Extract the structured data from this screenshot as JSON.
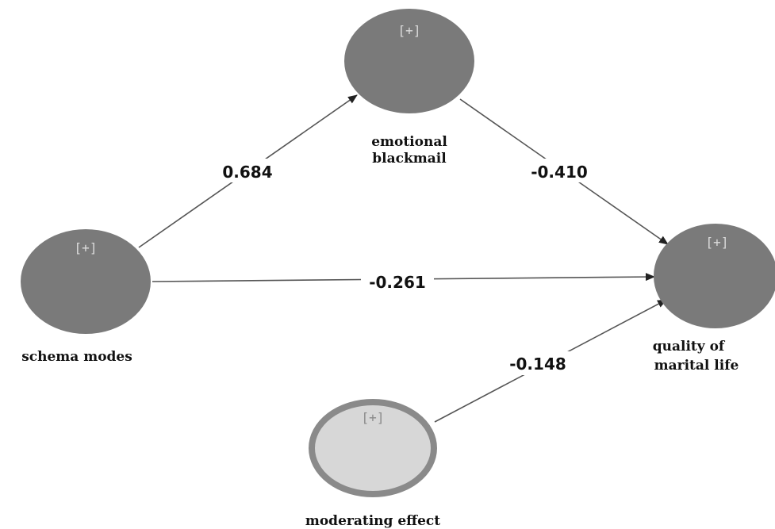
{
  "nodes": {
    "schema_modes": {
      "label": "schema modes",
      "expand": "[+]"
    },
    "emotional_blackmail": {
      "label_line1": "emotional",
      "label_line2": "blackmail",
      "expand": "[+]"
    },
    "quality_of_marital_life": {
      "label_line1": "quality of",
      "label_line2": "marital life",
      "expand": "[+]"
    },
    "moderating_effect": {
      "label": "moderating effect",
      "expand": "[+]"
    }
  },
  "paths": {
    "schema_to_emotional": "0.684",
    "emotional_to_quality": "-0.410",
    "schema_to_quality": "-0.261",
    "moderating_to_quality": "-0.148"
  },
  "colors": {
    "dark_node": "#7a7a7a",
    "light_node": "#d7d7d7",
    "light_node_border": "#8a8a8a",
    "arrow": "#555555"
  }
}
